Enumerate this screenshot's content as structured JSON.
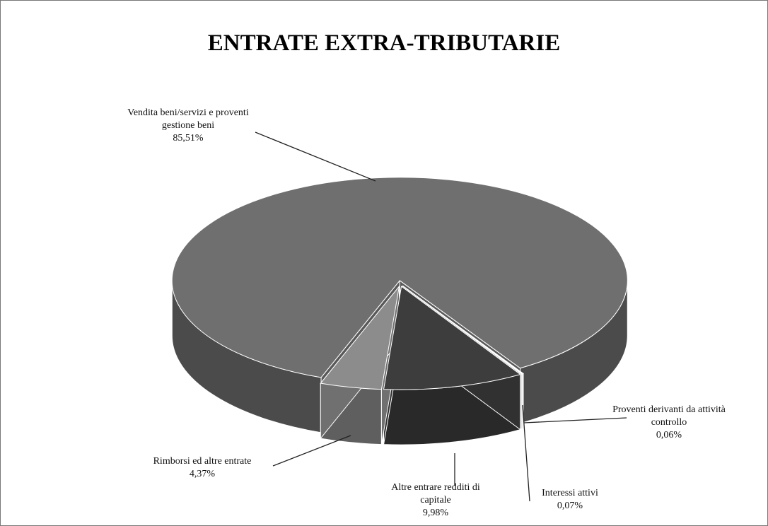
{
  "chart_data": {
    "type": "pie3d",
    "title": "ENTRATE EXTRA-TRIBUTARIE",
    "categories": [
      "Vendita beni/servizi e proventi gestione beni",
      "Proventi derivanti da attività controllo",
      "Interessi attivi",
      "Altre entrare redditi di capitale",
      "Rimborsi ed altre entrate"
    ],
    "values": [
      85.51,
      0.06,
      0.07,
      9.98,
      4.37
    ],
    "value_labels": [
      "85,51%",
      "0,06%",
      "0,07%",
      "9,98%",
      "4,37%"
    ],
    "colors": [
      "#6f6f6f",
      "#d8d8d8",
      "#d8d8d8",
      "#3d3d3d",
      "#8c8c8c"
    ]
  }
}
